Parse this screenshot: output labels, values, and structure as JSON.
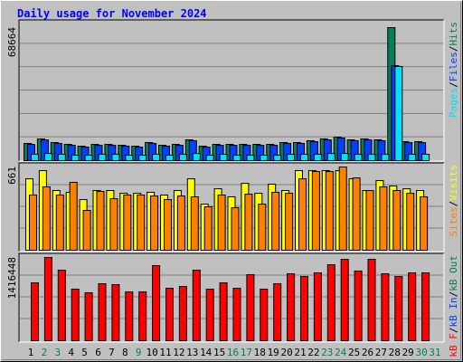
{
  "chart_data": [
    {
      "type": "bar",
      "title": "Daily usage for November 2024",
      "ylim": [
        0,
        68664
      ],
      "yticks": [
        68664
      ],
      "grid": true,
      "series": [
        {
          "name": "Hits",
          "color": "#00805c",
          "values": [
            8873,
            11208,
            9340,
            8406,
            7472,
            8406,
            8406,
            7939,
            7472,
            9340,
            7939,
            8406,
            10741,
            7472,
            8406,
            8406,
            8406,
            8406,
            8406,
            9340,
            9340,
            10274,
            11208,
            12142,
            10741,
            11208,
            10741,
            68664,
            9807,
            9807,
            null
          ]
        },
        {
          "name": "Files",
          "color": "#0040ff",
          "values": [
            8400,
            10700,
            8900,
            7900,
            7000,
            7900,
            7900,
            7500,
            7000,
            8900,
            7500,
            7900,
            10300,
            7000,
            7900,
            7900,
            7900,
            7900,
            7900,
            8900,
            8900,
            9800,
            10700,
            11700,
            10300,
            10700,
            10300,
            49000,
            9300,
            9300,
            null
          ]
        },
        {
          "name": "Pages",
          "color": "#00e0ff",
          "values": [
            3300,
            3700,
            3300,
            2800,
            2800,
            3300,
            3300,
            2800,
            2800,
            3300,
            2800,
            3300,
            3700,
            2800,
            3300,
            2800,
            2800,
            2800,
            2800,
            3300,
            3300,
            3300,
            3700,
            3700,
            3300,
            3300,
            3300,
            48600,
            3300,
            3300,
            null
          ]
        }
      ],
      "legend_separator": "/"
    },
    {
      "type": "bar",
      "ylim": [
        0,
        661
      ],
      "yticks": [
        661
      ],
      "grid": true,
      "series": [
        {
          "name": "Visits",
          "color": "#ffff00",
          "values": [
            567,
            632,
            474,
            460,
            402,
            474,
            474,
            452,
            452,
            460,
            438,
            474,
            567,
            366,
            488,
            424,
            531,
            452,
            524,
            474,
            632,
            632,
            632,
            632,
            567,
            474,
            553,
            510,
            488,
            474,
            null
          ]
        },
        {
          "name": "Sites",
          "color": "#ff8000",
          "values": [
            438,
            503,
            438,
            539,
            316,
            467,
            409,
            438,
            438,
            431,
            402,
            431,
            424,
            345,
            438,
            337,
            445,
            366,
            460,
            452,
            567,
            625,
            625,
            661,
            574,
            474,
            503,
            474,
            452,
            424,
            null
          ]
        }
      ],
      "legend_separator": "/"
    },
    {
      "type": "bar",
      "ylim": [
        0,
        1416448
      ],
      "yticks": [
        1416448
      ],
      "grid": true,
      "categories": [
        "1",
        "2",
        "3",
        "4",
        "5",
        "6",
        "7",
        "8",
        "9",
        "10",
        "11",
        "12",
        "13",
        "14",
        "15",
        "16",
        "17",
        "18",
        "19",
        "20",
        "21",
        "22",
        "23",
        "24",
        "25",
        "26",
        "27",
        "28",
        "29",
        "30",
        "31"
      ],
      "category_colors": [
        "#000000",
        "#00805c",
        "#00805c",
        "#000000",
        "#000000",
        "#000000",
        "#000000",
        "#000000",
        "#00805c",
        "#000000",
        "#000000",
        "#000000",
        "#000000",
        "#000000",
        "#000000",
        "#00805c",
        "#00805c",
        "#000000",
        "#000000",
        "#000000",
        "#000000",
        "#000000",
        "#00805c",
        "#00805c",
        "#000000",
        "#000000",
        "#000000",
        "#000000",
        "#000000",
        "#00805c",
        "#00805c"
      ],
      "series": [
        {
          "name": "kB Out",
          "color": "#00805c",
          "values": [
            null,
            null,
            null,
            null,
            null,
            null,
            null,
            null,
            null,
            null,
            null,
            null,
            null,
            null,
            null,
            null,
            null,
            null,
            null,
            null,
            null,
            null,
            null,
            null,
            null,
            null,
            null,
            null,
            null,
            null,
            null
          ]
        },
        {
          "name": "kB In",
          "color": "#0040ff",
          "values": [
            null,
            null,
            null,
            null,
            null,
            null,
            null,
            null,
            null,
            null,
            null,
            null,
            null,
            null,
            null,
            null,
            null,
            null,
            null,
            null,
            null,
            null,
            null,
            null,
            null,
            null,
            null,
            null,
            null,
            null,
            null
          ]
        },
        {
          "name": "kB F",
          "color": "#ff0000",
          "values": [
            985344,
            1416448,
            1200888,
            877572,
            815988,
            969948,
            954552,
            831384,
            831384,
            1277868,
            892968,
            923760,
            1200888,
            877572,
            985344,
            892968,
            1123908,
            877572,
            969948,
            1139304,
            1093116,
            1154700,
            1293264,
            1385640,
            1185492,
            1385640,
            1139304,
            1093116,
            1154700,
            1154700,
            null
          ]
        }
      ],
      "legend_separator": "/"
    }
  ]
}
